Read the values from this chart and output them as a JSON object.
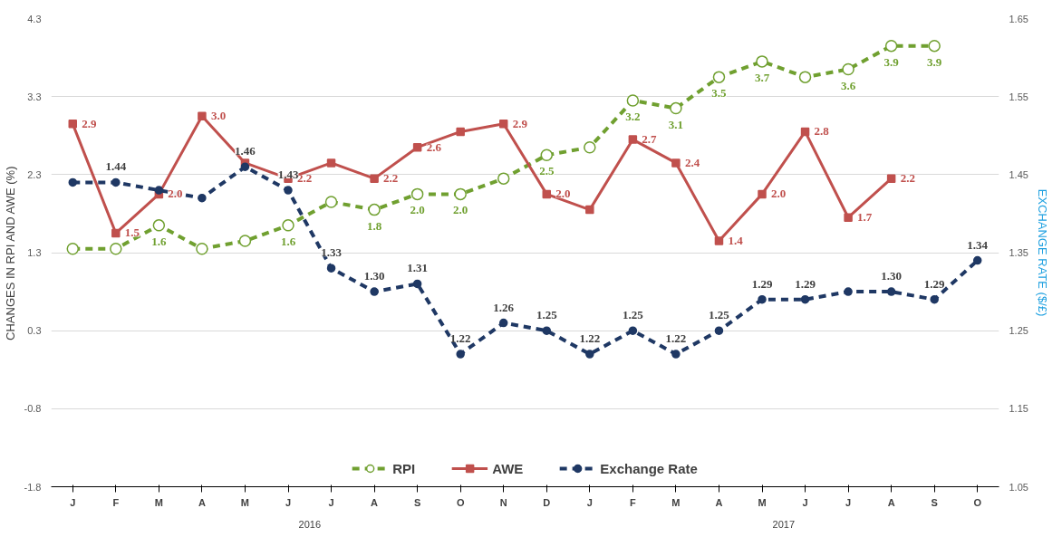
{
  "chart_data": {
    "type": "line",
    "ylabel": "CHANGES IN RPI AND AWE (%)",
    "y2label": "EXCHANGE RATE ($/£)",
    "categories": [
      "J",
      "F",
      "M",
      "A",
      "M",
      "J",
      "J",
      "A",
      "S",
      "O",
      "N",
      "D",
      "J",
      "F",
      "M",
      "A",
      "M",
      "J",
      "J",
      "A",
      "S",
      "O"
    ],
    "annotations": [
      "2016",
      "2017"
    ],
    "ylim": [
      -1.75,
      4.25
    ],
    "yticks": [
      {
        "value": -1.75,
        "label": "-1.8"
      },
      {
        "value": -0.75,
        "label": "-0.8"
      },
      {
        "value": 0.25,
        "label": "0.3"
      },
      {
        "value": 1.25,
        "label": "1.3"
      },
      {
        "value": 2.25,
        "label": "2.3"
      },
      {
        "value": 3.25,
        "label": "3.3"
      },
      {
        "value": 4.25,
        "label": "4.3"
      }
    ],
    "y2lim": [
      1.05,
      1.65
    ],
    "y2ticks": [
      1.05,
      1.15,
      1.25,
      1.35,
      1.45,
      1.55,
      1.65
    ],
    "grid": "y",
    "legend": "bottom",
    "series": [
      {
        "name": "RPI",
        "color": "#70a030",
        "marker": "circle",
        "line_style": "dashed",
        "values": [
          1.3,
          1.3,
          1.6,
          1.3,
          1.4,
          1.6,
          1.9,
          1.8,
          2.0,
          2.0,
          2.2,
          2.5,
          2.6,
          3.2,
          3.1,
          3.5,
          3.7,
          3.5,
          3.6,
          3.9,
          3.9,
          null
        ],
        "value_labels": [
          null,
          null,
          "1.6",
          null,
          null,
          "1.6",
          null,
          "1.8",
          "2.0",
          "2.0",
          null,
          "2.5",
          null,
          "3.2",
          "3.1",
          "3.5",
          "3.7",
          null,
          "3.6",
          "3.9",
          "3.9",
          null
        ]
      },
      {
        "name": "AWE",
        "color": "#c0504d",
        "marker": "square",
        "line_style": "solid",
        "values": [
          2.9,
          1.5,
          2.0,
          3.0,
          2.4,
          2.2,
          2.4,
          2.2,
          2.6,
          2.8,
          2.9,
          2.0,
          1.8,
          2.7,
          2.4,
          1.4,
          2.0,
          2.8,
          1.7,
          2.2,
          null,
          null
        ],
        "value_labels": [
          "2.9",
          "1.5",
          "2.0",
          "3.0",
          null,
          "2.2",
          null,
          "2.2",
          "2.6",
          null,
          "2.9",
          "2.0",
          null,
          "2.7",
          "2.4",
          "1.4",
          "2.0",
          "2.8",
          "1.7",
          "2.2",
          null,
          null
        ]
      },
      {
        "name": "Exchange Rate",
        "color": "#1f3864",
        "marker": "circle",
        "line_style": "dashed",
        "axis": "y2",
        "values": [
          1.44,
          1.44,
          1.43,
          1.42,
          1.46,
          1.43,
          1.33,
          1.3,
          1.31,
          1.22,
          1.26,
          1.25,
          1.22,
          1.25,
          1.22,
          1.25,
          1.29,
          1.29,
          1.3,
          1.3,
          1.29,
          1.34
        ],
        "value_labels": [
          null,
          "1.44",
          null,
          null,
          "1.46",
          "1.43",
          "1.33",
          "1.30",
          "1.31",
          "1.22",
          "1.26",
          "1.25",
          "1.22",
          "1.25",
          "1.22",
          "1.25",
          "1.29",
          "1.29",
          null,
          "1.30",
          "1.29",
          "1.34"
        ]
      }
    ]
  }
}
